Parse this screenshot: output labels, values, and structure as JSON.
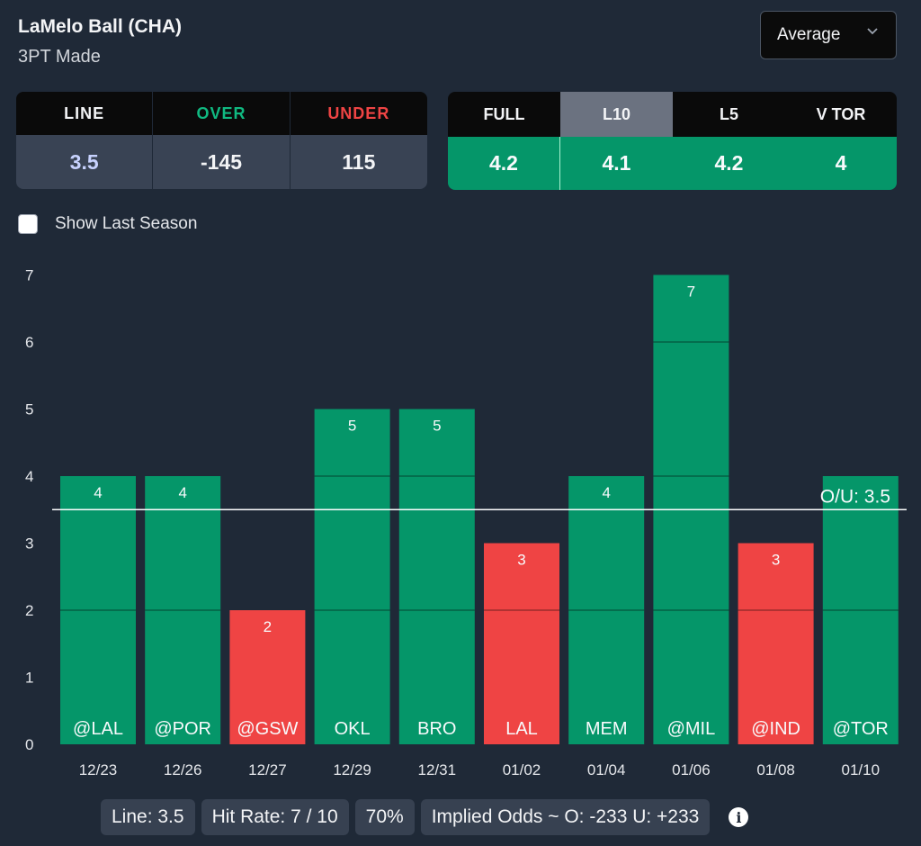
{
  "header": {
    "title": "LaMelo Ball (CHA)",
    "subtitle": "3PT Made"
  },
  "dropdown": {
    "selected": "Average",
    "icon": "chevron-down-icon"
  },
  "odds": {
    "headers": [
      "LINE",
      "OVER",
      "UNDER"
    ],
    "values": [
      "3.5",
      "-145",
      "115"
    ],
    "colors": {
      "line": "#f3f4f6",
      "over": "#10b981",
      "under": "#ef4444"
    }
  },
  "averages": {
    "tabs": [
      "FULL",
      "L10",
      "L5",
      "V TOR"
    ],
    "active_tab": "L10",
    "values": [
      "4.2",
      "4.1",
      "4.2",
      "4"
    ]
  },
  "show_last_season": {
    "label": "Show Last Season",
    "checked": false
  },
  "chart_data": {
    "type": "bar",
    "title": "",
    "xlabel": "",
    "ylabel": "",
    "ylim": [
      0,
      7
    ],
    "yticks": [
      0,
      1,
      2,
      3,
      4,
      5,
      6,
      7
    ],
    "categories": [
      "12/23",
      "12/26",
      "12/27",
      "12/29",
      "12/31",
      "01/02",
      "01/04",
      "01/06",
      "01/08",
      "01/10"
    ],
    "opponents": [
      "@LAL",
      "@POR",
      "@GSW",
      "OKL",
      "BRO",
      "LAL",
      "MEM",
      "@MIL",
      "@IND",
      "@TOR"
    ],
    "values": [
      4,
      4,
      2,
      5,
      5,
      3,
      4,
      7,
      3,
      4
    ],
    "value_labels": [
      "4",
      "4",
      "2",
      "5",
      "5",
      "3",
      "4",
      "7",
      "3",
      ""
    ],
    "line": {
      "value": 3.5,
      "label": "O/U: 3.5"
    },
    "colors": {
      "over": "#059669",
      "under": "#ef4444",
      "line": "#ffffff"
    }
  },
  "footer": {
    "line": "Line: 3.5",
    "hit_rate": "Hit Rate: 7 / 10",
    "pct": "70%",
    "implied": "Implied Odds ~ O: -233 U: +233"
  }
}
